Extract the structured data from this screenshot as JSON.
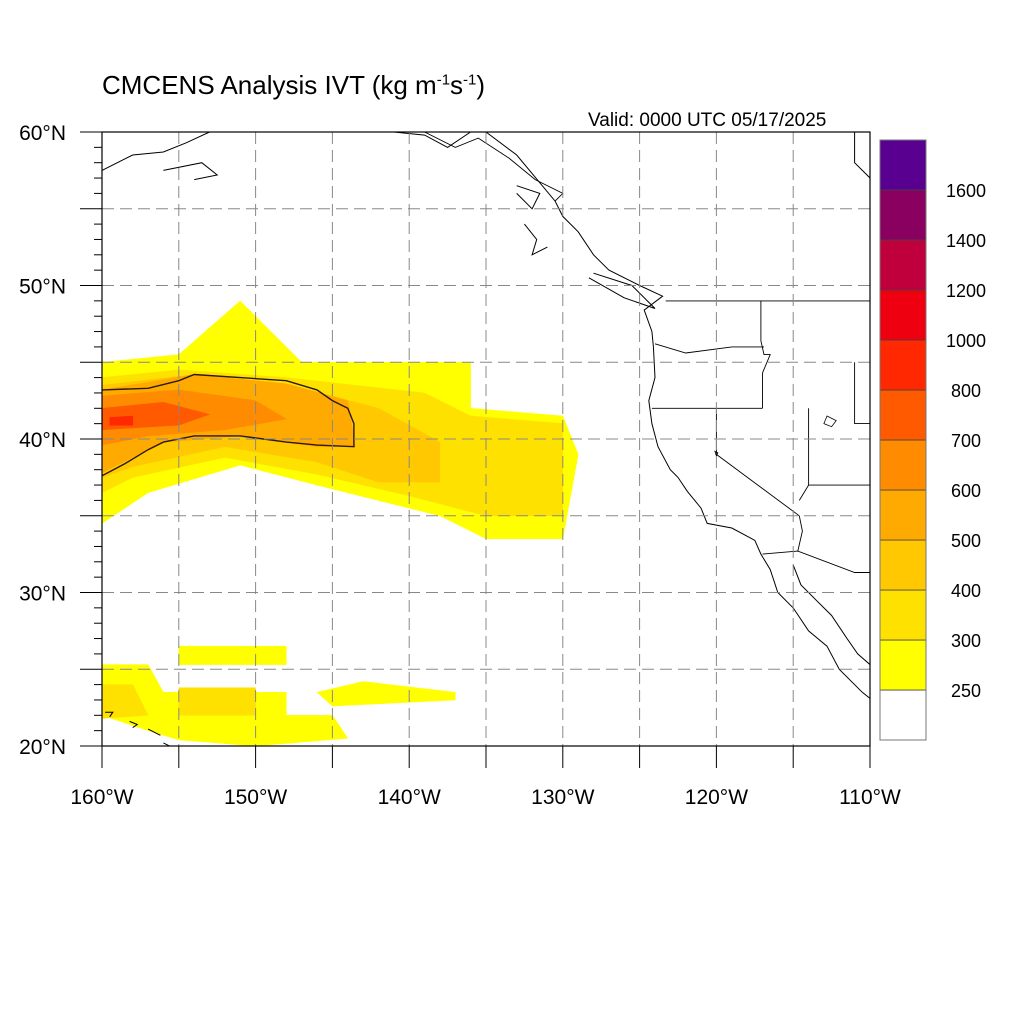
{
  "title": {
    "main": "CMCENS Analysis IVT (kg m",
    "exp1": "-1",
    "mid": "s",
    "exp2": "-1",
    "end": ")"
  },
  "valid_label": "Valid: 0000 UTC 05/17/2025",
  "map": {
    "lon_range": [
      -160,
      -110
    ],
    "lat_range": [
      20,
      60
    ],
    "lon_tick_labels": [
      "160°W",
      "150°W",
      "140°W",
      "130°W",
      "120°W",
      "110°W"
    ],
    "lat_tick_labels": [
      "20°N",
      "30°N",
      "40°N",
      "50°N",
      "60°N"
    ],
    "grid_style": "dashed",
    "grid_lon_step": 5,
    "grid_lat_step": 5
  },
  "colorbar": {
    "levels": [
      "250",
      "300",
      "400",
      "500",
      "600",
      "700",
      "800",
      "1000",
      "1200",
      "1400",
      "1600"
    ],
    "colors": [
      "#ffffff",
      "#ffff00",
      "#ffe100",
      "#ffc800",
      "#ffaa00",
      "#ff8c00",
      "#ff5a00",
      "#ff2800",
      "#ee0010",
      "#c0003c",
      "#8a0060",
      "#5a0090"
    ],
    "placement": "right"
  },
  "ivt_regions": [
    {
      "level": 250,
      "color": "#ffff00",
      "polygon": [
        [
          -160,
          45
        ],
        [
          -155,
          45.5
        ],
        [
          -151,
          49
        ],
        [
          -147,
          45
        ],
        [
          -136,
          45
        ],
        [
          -136,
          42
        ],
        [
          -130,
          41.5
        ],
        [
          -129,
          39
        ],
        [
          -130,
          33.5
        ],
        [
          -135,
          33.5
        ],
        [
          -138,
          35
        ],
        [
          -146,
          37
        ],
        [
          -151,
          38.3
        ],
        [
          -157,
          36.5
        ],
        [
          -160,
          34.5
        ]
      ]
    },
    {
      "level": 250,
      "color": "#ffff00",
      "polygon": [
        [
          -155,
          26.5
        ],
        [
          -148,
          26.5
        ],
        [
          -148,
          25.3
        ],
        [
          -155,
          25.3
        ]
      ]
    },
    {
      "level": 250,
      "color": "#ffff00",
      "polygon": [
        [
          -160,
          25.3
        ],
        [
          -157,
          25.3
        ],
        [
          -156,
          23.5
        ],
        [
          -155,
          23.5
        ],
        [
          -148,
          23.5
        ],
        [
          -148,
          22
        ],
        [
          -145,
          22
        ],
        [
          -144,
          20.5
        ],
        [
          -150,
          20
        ],
        [
          -155,
          20.4
        ],
        [
          -157,
          21
        ],
        [
          -160,
          22
        ]
      ]
    },
    {
      "level": 250,
      "color": "#ffff00",
      "polygon": [
        [
          -143,
          24.2
        ],
        [
          -137,
          23.5
        ],
        [
          -137,
          23
        ],
        [
          -145,
          22.6
        ],
        [
          -146,
          23.5
        ]
      ]
    },
    {
      "level": 300,
      "color": "#ffe100",
      "polygon": [
        [
          -160,
          44
        ],
        [
          -155,
          44.5
        ],
        [
          -148,
          44
        ],
        [
          -139,
          43
        ],
        [
          -136,
          41.5
        ],
        [
          -130,
          41
        ],
        [
          -130,
          35
        ],
        [
          -135,
          35
        ],
        [
          -140,
          36.3
        ],
        [
          -146,
          37.7
        ],
        [
          -152,
          38.8
        ],
        [
          -158,
          37.5
        ],
        [
          -160,
          36.5
        ]
      ]
    },
    {
      "level": 300,
      "color": "#ffe100",
      "polygon": [
        [
          -155,
          23.8
        ],
        [
          -150,
          23.8
        ],
        [
          -150,
          22
        ],
        [
          -155,
          22
        ]
      ]
    },
    {
      "level": 300,
      "color": "#ffe100",
      "polygon": [
        [
          -160,
          24
        ],
        [
          -158,
          24
        ],
        [
          -157,
          22
        ],
        [
          -160,
          21.8
        ]
      ]
    },
    {
      "level": 400,
      "color": "#ffc800",
      "polygon": [
        [
          -160,
          43.5
        ],
        [
          -154,
          44.2
        ],
        [
          -147,
          43.3
        ],
        [
          -142,
          42
        ],
        [
          -138,
          39.8
        ],
        [
          -138,
          37.2
        ],
        [
          -142,
          37.2
        ],
        [
          -146,
          38.5
        ],
        [
          -152,
          39.5
        ],
        [
          -158,
          38.2
        ],
        [
          -160,
          37.5
        ]
      ]
    },
    {
      "level": 500,
      "color": "#ffaa00",
      "polygon": [
        [
          -160,
          43.2
        ],
        [
          -154,
          44.2
        ],
        [
          -148,
          43.6
        ],
        [
          -144,
          42.5
        ],
        [
          -143.5,
          39.5
        ],
        [
          -146,
          39.5
        ],
        [
          -151,
          40.2
        ],
        [
          -156,
          39.8
        ],
        [
          -160,
          37.8
        ]
      ]
    },
    {
      "level": 600,
      "color": "#ff8c00",
      "polygon": [
        [
          -160,
          42.8
        ],
        [
          -155,
          43.2
        ],
        [
          -150,
          42.5
        ],
        [
          -148,
          41.3
        ],
        [
          -152,
          40.6
        ],
        [
          -157,
          40.2
        ],
        [
          -160,
          39.6
        ]
      ]
    },
    {
      "level": 700,
      "color": "#ff5a00",
      "polygon": [
        [
          -160,
          42
        ],
        [
          -156,
          42.4
        ],
        [
          -153,
          41.6
        ],
        [
          -155,
          40.9
        ],
        [
          -160,
          40.6
        ]
      ]
    },
    {
      "level": 800,
      "color": "#ff2800",
      "polygon": [
        [
          -159.5,
          41.4
        ],
        [
          -158,
          41.5
        ],
        [
          -158,
          40.9
        ],
        [
          -159.5,
          40.9
        ]
      ]
    }
  ],
  "ivt_contour": {
    "level": 500,
    "polygon": [
      [
        -160,
        43.2
      ],
      [
        -157,
        43.3
      ],
      [
        -155,
        43.8
      ],
      [
        -154,
        44.2
      ],
      [
        -148,
        43.8
      ],
      [
        -146,
        43.2
      ],
      [
        -145,
        42.5
      ],
      [
        -144,
        42
      ],
      [
        -143.6,
        41
      ],
      [
        -143.6,
        39.5
      ],
      [
        -146,
        39.6
      ],
      [
        -148,
        39.8
      ],
      [
        -151,
        40.2
      ],
      [
        -154,
        40.2
      ],
      [
        -156,
        39.8
      ],
      [
        -157,
        39.3
      ],
      [
        -158.5,
        38.4
      ],
      [
        -160,
        37.6
      ]
    ]
  },
  "coastlines": [
    [
      [
        -135,
        60
      ],
      [
        -133,
        58.5
      ],
      [
        -130.5,
        55.5
      ],
      [
        -130,
        54.5
      ],
      [
        -129,
        53.5
      ],
      [
        -128,
        52
      ],
      [
        -127,
        51
      ],
      [
        -125,
        50
      ],
      [
        -123.5,
        49.3
      ],
      [
        -124.7,
        48.4
      ],
      [
        -124.2,
        47
      ],
      [
        -124.1,
        46
      ],
      [
        -124,
        44
      ],
      [
        -124.4,
        42.5
      ],
      [
        -124.2,
        41
      ],
      [
        -123.8,
        39.5
      ],
      [
        -123,
        38
      ],
      [
        -122.5,
        37.5
      ],
      [
        -121.9,
        36.6
      ],
      [
        -121,
        35.5
      ],
      [
        -120.6,
        34.5
      ],
      [
        -119,
        34.2
      ],
      [
        -117.5,
        33.4
      ],
      [
        -117.1,
        32.5
      ],
      [
        -116.5,
        31.5
      ],
      [
        -116,
        30
      ],
      [
        -115,
        29
      ],
      [
        -114,
        27.5
      ],
      [
        -112.8,
        26.5
      ],
      [
        -112,
        25
      ],
      [
        -110.5,
        23.5
      ],
      [
        -110,
        23.1
      ]
    ],
    [
      [
        -115,
        31.8
      ],
      [
        -114.5,
        30.5
      ],
      [
        -113.5,
        29.5
      ],
      [
        -112.5,
        28.5
      ],
      [
        -111.5,
        27
      ],
      [
        -110.8,
        26
      ],
      [
        -110,
        25.3
      ]
    ],
    [
      [
        -136,
        60
      ],
      [
        -137.5,
        59
      ],
      [
        -139,
        59.8
      ],
      [
        -141,
        60
      ]
    ],
    [
      [
        -160,
        57.5
      ],
      [
        -158,
        58.5
      ],
      [
        -156,
        58.7
      ],
      [
        -154.5,
        59.3
      ],
      [
        -153,
        60
      ]
    ],
    [
      [
        -156,
        57.5
      ],
      [
        -153.5,
        58
      ],
      [
        -152.5,
        57.2
      ],
      [
        -154,
        56.9
      ]
    ],
    [
      [
        -133,
        56
      ],
      [
        -132,
        55
      ],
      [
        -131.5,
        56
      ],
      [
        -133,
        56.5
      ]
    ],
    [
      [
        -132.5,
        54
      ],
      [
        -131.7,
        53
      ],
      [
        -132,
        52
      ],
      [
        -131,
        52.5
      ]
    ],
    [
      [
        -128,
        50.8
      ],
      [
        -125.5,
        50
      ],
      [
        -124,
        48.5
      ],
      [
        -126,
        49.2
      ],
      [
        -128.3,
        50.5
      ]
    ],
    [
      [
        -111,
        60
      ],
      [
        -111,
        58
      ],
      [
        -110,
        57
      ]
    ],
    [
      [
        -159.8,
        22.2
      ],
      [
        -159.3,
        22.2
      ],
      [
        -159.5,
        21.9
      ]
    ],
    [
      [
        -158.2,
        21.6
      ],
      [
        -157.7,
        21.4
      ],
      [
        -158,
        21.2
      ]
    ],
    [
      [
        -157,
        21.1
      ],
      [
        -156.6,
        20.9
      ],
      [
        -156.2,
        20.7
      ]
    ],
    [
      [
        -156,
        20.2
      ],
      [
        -155.2,
        19.8
      ],
      [
        -155.8,
        20.0
      ]
    ]
  ],
  "borders": [
    [
      [
        -141,
        60
      ],
      [
        -141,
        60.5
      ]
    ],
    [
      [
        -123.3,
        49
      ],
      [
        -110,
        49
      ]
    ],
    [
      [
        -130.5,
        55.5
      ],
      [
        -130,
        56
      ],
      [
        -131.8,
        56.9
      ],
      [
        -133.5,
        58.3
      ],
      [
        -135.5,
        59.6
      ],
      [
        -137,
        59
      ],
      [
        -139,
        60
      ]
    ],
    [
      [
        -117,
        32.5
      ],
      [
        -114.7,
        32.7
      ],
      [
        -111,
        31.3
      ],
      [
        -110,
        31.3
      ]
    ],
    [
      [
        -120,
        42
      ],
      [
        -124.2,
        42
      ]
    ],
    [
      [
        -117,
        42
      ],
      [
        -120,
        42
      ]
    ],
    [
      [
        -120,
        42
      ],
      [
        -120,
        39
      ],
      [
        -114.6,
        35
      ]
    ],
    [
      [
        -117.1,
        49
      ],
      [
        -117.1,
        46.4
      ],
      [
        -116.9,
        45.5
      ],
      [
        -116.5,
        45.5
      ],
      [
        -117,
        44.3
      ],
      [
        -117,
        42
      ]
    ],
    [
      [
        -124,
        46.2
      ],
      [
        -122,
        45.6
      ],
      [
        -119,
        46
      ],
      [
        -116.9,
        46
      ]
    ],
    [
      [
        -114,
        42
      ],
      [
        -114,
        37
      ],
      [
        -114.6,
        36
      ]
    ],
    [
      [
        -111,
        45
      ],
      [
        -111,
        41
      ],
      [
        -110,
        41
      ]
    ],
    [
      [
        -114,
        37
      ],
      [
        -110,
        37
      ]
    ],
    [
      [
        -114.6,
        35
      ],
      [
        -114.4,
        34
      ],
      [
        -114.7,
        32.7
      ]
    ]
  ],
  "lakes": [
    [
      [
        -112.8,
        41.5
      ],
      [
        -112.2,
        41.2
      ],
      [
        -112.5,
        40.8
      ],
      [
        -113,
        41
      ]
    ],
    [
      [
        -120.1,
        39.2
      ],
      [
        -119.9,
        39.1
      ],
      [
        -120,
        38.9
      ]
    ]
  ]
}
